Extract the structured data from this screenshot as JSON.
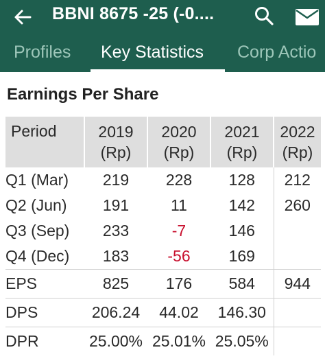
{
  "header": {
    "title": "BBNI  8675 -25 (-0....",
    "back_icon": "arrow-left-icon",
    "search_icon": "search-icon",
    "mail_icon": "mail-icon"
  },
  "tabs": [
    {
      "label": "Profiles",
      "active": false
    },
    {
      "label": "Key Statistics",
      "active": true
    },
    {
      "label": "Corp Actio",
      "active": false
    }
  ],
  "section": {
    "title": "Earnings Per Share"
  },
  "table": {
    "period_header": "Period",
    "columns": [
      {
        "year": "2019",
        "unit": "(Rp)"
      },
      {
        "year": "2020",
        "unit": "(Rp)"
      },
      {
        "year": "2021",
        "unit": "(Rp)"
      },
      {
        "year": "2022",
        "unit": "(Rp)"
      }
    ],
    "quarters": [
      {
        "label": "Q1 (Mar)",
        "values": [
          "219",
          "228",
          "128",
          "212"
        ]
      },
      {
        "label": "Q2 (Jun)",
        "values": [
          "191",
          "11",
          "142",
          "260"
        ]
      },
      {
        "label": "Q3 (Sep)",
        "values": [
          "233",
          "-7",
          "146",
          ""
        ]
      },
      {
        "label": "Q4 (Dec)",
        "values": [
          "183",
          "-56",
          "169",
          ""
        ]
      }
    ],
    "summary": [
      {
        "label": "EPS",
        "values": [
          "825",
          "176",
          "584",
          "944"
        ]
      },
      {
        "label": "DPS",
        "values": [
          "206.24",
          "44.02",
          "146.30",
          ""
        ]
      },
      {
        "label": "DPR",
        "values": [
          "25.00%",
          "25.01%",
          "25.05%",
          ""
        ]
      }
    ]
  },
  "colors": {
    "appbar": "#1e5e4e",
    "negative": "#c8102e",
    "header_bg": "#dedede"
  }
}
